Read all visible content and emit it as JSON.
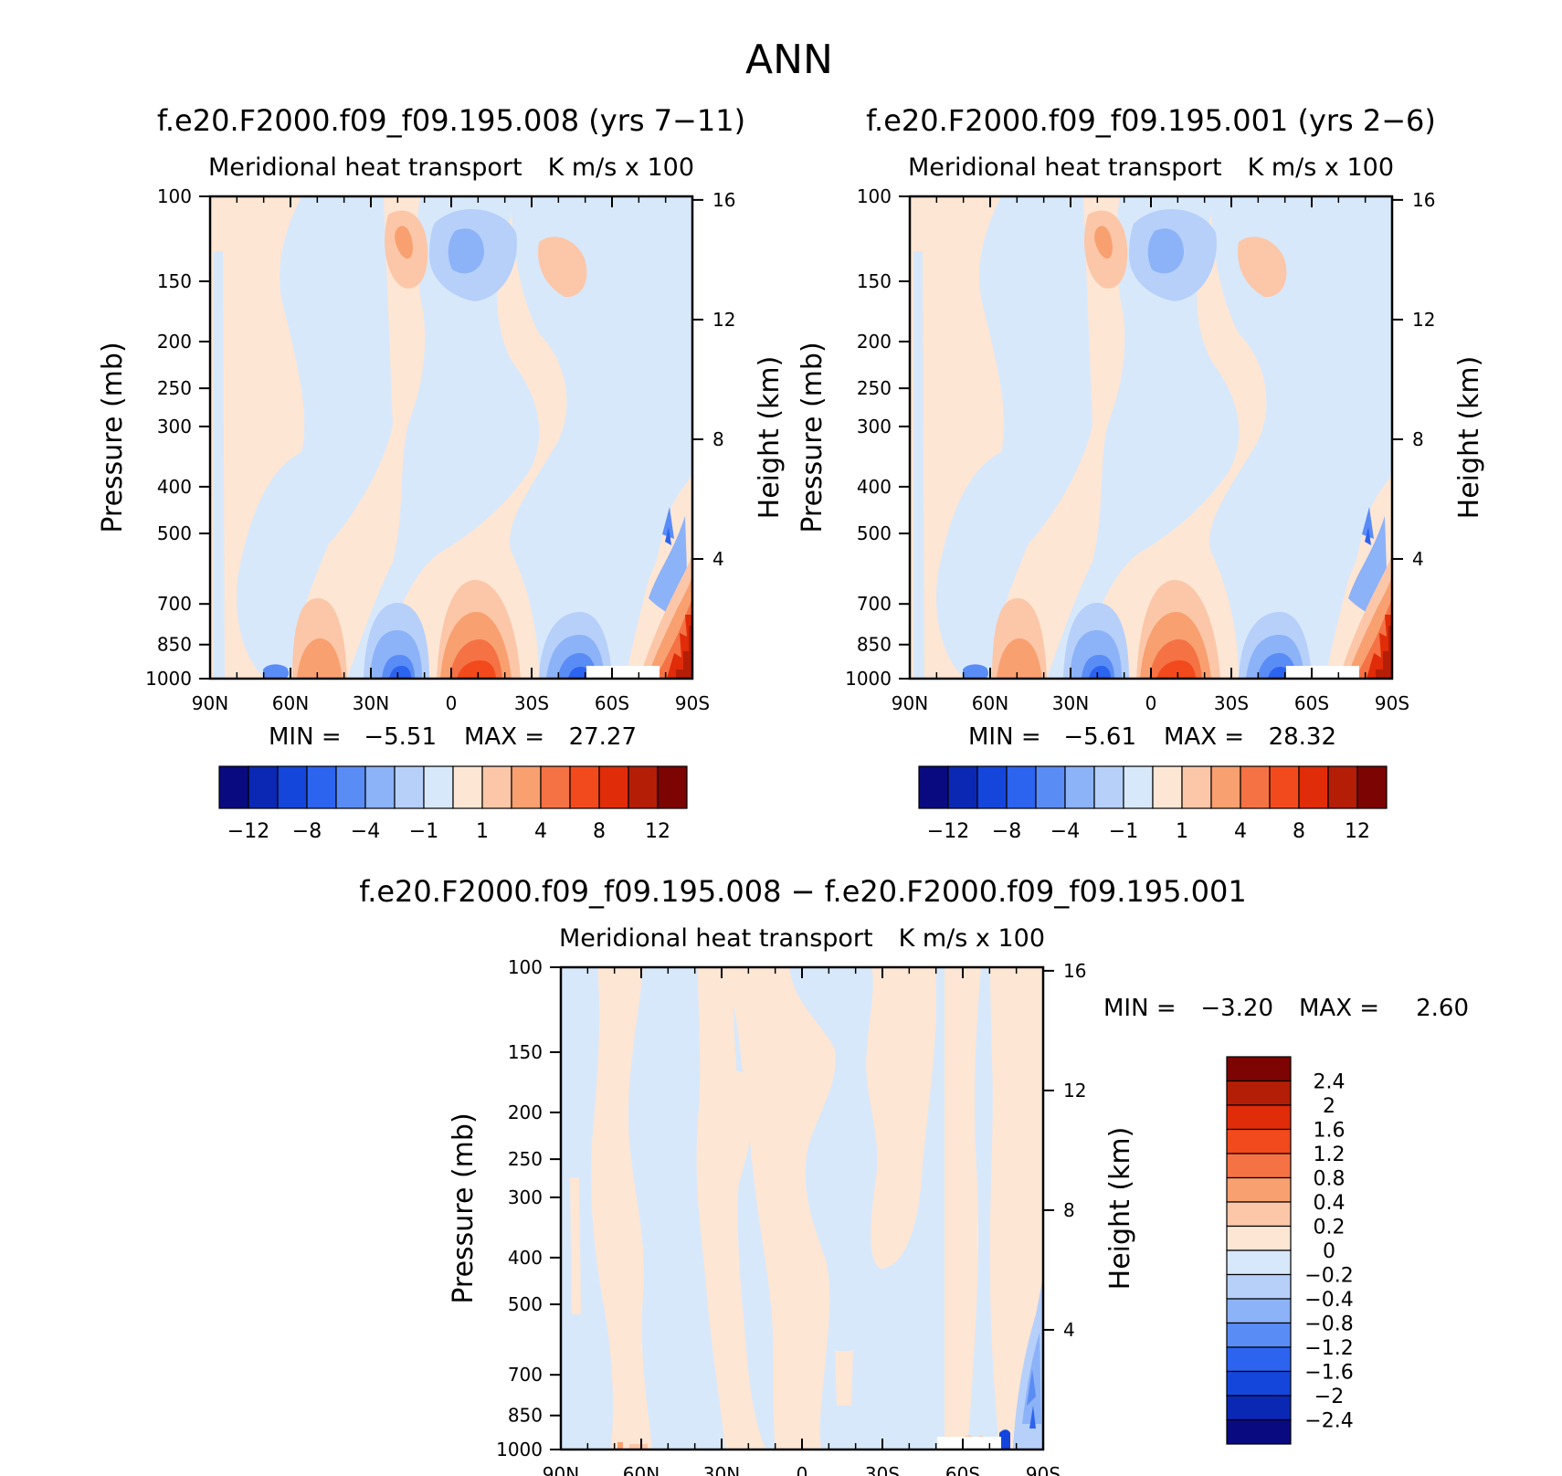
{
  "page_title": "ANN",
  "chart_data": [
    {
      "type": "heatmap",
      "title": "f.e20.F2000.f09_f09.195.008 (yrs 7−11)",
      "subtitle_left": "Meridional heat transport",
      "subtitle_right": "K m/s x 100",
      "ylabel": "Pressure (mb)",
      "ylabel_right": "Height (km)",
      "x_ticks": [
        "90N",
        "60N",
        "30N",
        "0",
        "30S",
        "60S",
        "90S"
      ],
      "y_ticks": [
        "100",
        "150",
        "200",
        "250",
        "300",
        "400",
        "500",
        "700",
        "850",
        "1000"
      ],
      "right_ticks": [
        "16",
        "12",
        "8",
        "4"
      ],
      "ylim": [
        1000,
        100
      ],
      "log_y": true,
      "min_label": "MIN =",
      "min_value": "−5.51",
      "max_label": "MAX =",
      "max_value": "27.27",
      "colorbar_labels": [
        "−12",
        "−8",
        "−4",
        "−1",
        "1",
        "4",
        "8",
        "12"
      ],
      "colorbar_colors": [
        "#0a0a80",
        "#0a28b4",
        "#1446dc",
        "#2c64f0",
        "#5a8cf6",
        "#8cb2f8",
        "#b6d0fa",
        "#d8e8fb",
        "#fde6d4",
        "#fbc7a8",
        "#f8a070",
        "#f57244",
        "#f24a1c",
        "#e02c08",
        "#b41e06",
        "#7c0402"
      ]
    },
    {
      "type": "heatmap",
      "title": "f.e20.F2000.f09_f09.195.001 (yrs 2−6)",
      "subtitle_left": "Meridional heat transport",
      "subtitle_right": "K m/s x 100",
      "ylabel": "Pressure (mb)",
      "ylabel_right": "Height (km)",
      "x_ticks": [
        "90N",
        "60N",
        "30N",
        "0",
        "30S",
        "60S",
        "90S"
      ],
      "y_ticks": [
        "100",
        "150",
        "200",
        "250",
        "300",
        "400",
        "500",
        "700",
        "850",
        "1000"
      ],
      "right_ticks": [
        "16",
        "12",
        "8",
        "4"
      ],
      "ylim": [
        1000,
        100
      ],
      "log_y": true,
      "min_label": "MIN =",
      "min_value": "−5.61",
      "max_label": "MAX =",
      "max_value": "28.32",
      "colorbar_labels": [
        "−12",
        "−8",
        "−4",
        "−1",
        "1",
        "4",
        "8",
        "12"
      ],
      "colorbar_colors": [
        "#0a0a80",
        "#0a28b4",
        "#1446dc",
        "#2c64f0",
        "#5a8cf6",
        "#8cb2f8",
        "#b6d0fa",
        "#d8e8fb",
        "#fde6d4",
        "#fbc7a8",
        "#f8a070",
        "#f57244",
        "#f24a1c",
        "#e02c08",
        "#b41e06",
        "#7c0402"
      ]
    },
    {
      "type": "heatmap",
      "title": "f.e20.F2000.f09_f09.195.008 − f.e20.F2000.f09_f09.195.001",
      "subtitle_left": "Meridional heat transport",
      "subtitle_right": "K m/s x 100",
      "ylabel": "Pressure (mb)",
      "ylabel_right": "Height (km)",
      "x_ticks": [
        "90N",
        "60N",
        "30N",
        "0",
        "30S",
        "60S",
        "90S"
      ],
      "y_ticks": [
        "100",
        "150",
        "200",
        "250",
        "300",
        "400",
        "500",
        "700",
        "850",
        "1000"
      ],
      "right_ticks": [
        "16",
        "12",
        "8",
        "4"
      ],
      "ylim": [
        1000,
        100
      ],
      "log_y": true,
      "min_label": "MIN =",
      "min_value": "−3.20",
      "max_label": "MAX =",
      "max_value": "2.60",
      "colorbar_labels": [
        "2.4",
        "2",
        "1.6",
        "1.2",
        "0.8",
        "0.4",
        "0.2",
        "0",
        "−0.2",
        "−0.4",
        "−0.8",
        "−1.2",
        "−1.6",
        "−2",
        "−2.4"
      ],
      "colorbar_colors": [
        "#7c0402",
        "#b41e06",
        "#e02c08",
        "#f24a1c",
        "#f57244",
        "#f8a070",
        "#fbc7a8",
        "#fde6d4",
        "#d8e8fb",
        "#b6d0fa",
        "#8cb2f8",
        "#5a8cf6",
        "#2c64f0",
        "#1446dc",
        "#0a28b4",
        "#0a0a80"
      ]
    }
  ]
}
